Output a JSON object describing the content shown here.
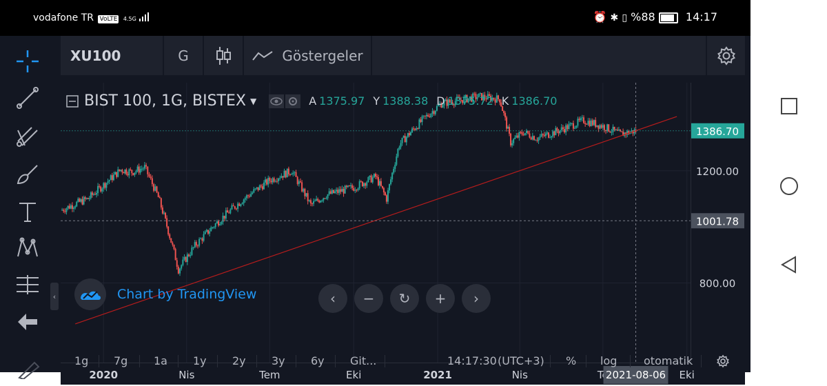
{
  "status_bar": {
    "carrier": "vodafone TR",
    "network_badge": "VoLTE",
    "signal": "4.5G",
    "battery": "%88",
    "time": "14:17",
    "icons": [
      "alarm-icon",
      "bluetooth-icon",
      "vibrate-icon",
      "battery-icon"
    ]
  },
  "top_bar": {
    "symbol": "XU100",
    "interval": "G",
    "chart_type_icon": "candlestick-icon",
    "indicators_icon": "indicators-icon",
    "indicators_label": "Göstergeler",
    "settings_icon": "gear-icon"
  },
  "tools": [
    "crosshair-icon",
    "trend-line-icon",
    "pitchfork-icon",
    "brush-icon",
    "text-icon",
    "pattern-icon",
    "measure-icon",
    "back-arrow-icon"
  ],
  "legend": {
    "title": "BIST 100, 1G, BISTEX",
    "labels": {
      "open": "A",
      "high": "Y",
      "low": "D",
      "close": "K"
    },
    "values": {
      "open": "1375.97",
      "high": "1388.38",
      "low": "1375.72",
      "close": "1386.70"
    }
  },
  "watermark": {
    "text": "Chart by TradingView"
  },
  "nav_buttons": [
    "scroll-left-icon",
    "zoom-out-icon",
    "reset-icon",
    "zoom-in-icon",
    "scroll-right-icon"
  ],
  "bottom_bar": {
    "ranges": [
      "1g",
      "7g",
      "1a",
      "1y",
      "2y",
      "3y",
      "6y",
      "Git..."
    ],
    "time": "14:17:30",
    "timezone": "(UTC+3)",
    "percent_label": "%",
    "log_label": "log",
    "auto_label": "otomatik",
    "settings_icon": "gear-icon"
  },
  "colors": {
    "up": "#26a69a",
    "down": "#ef5350",
    "background": "#131722",
    "trendline": "#b71c1c",
    "last_price_badge": "#26a69a"
  },
  "chart_data": {
    "type": "candlestick",
    "title": "BIST 100, 1G, BISTEX",
    "x_axis": {
      "ticks": [
        "2020",
        "Nis",
        "Tem",
        "Eki",
        "2021",
        "Nis",
        "Te",
        "Eki"
      ],
      "tick_dates": [
        "2020-01-01",
        "2020-04-01",
        "2020-07-01",
        "2020-10-01",
        "2021-01-01",
        "2021-04-01",
        "2021-07-01",
        "2021-10-01"
      ],
      "range": [
        "2019-11-15",
        "2021-10-05"
      ],
      "crosshair_date": "2021-08-06"
    },
    "y_axis": {
      "ticks": [
        800.0,
        1200.0
      ],
      "tick_labels": [
        "800.00",
        "1200.00"
      ],
      "range": [
        600,
        1650
      ]
    },
    "price_labels": [
      {
        "value": 1386.7,
        "label": "1386.70",
        "kind": "last_price"
      },
      {
        "value": 1001.78,
        "label": "1001.78",
        "kind": "crosshair"
      }
    ],
    "ohlc_last": {
      "open": 1375.97,
      "high": 1388.38,
      "low": 1375.72,
      "close": 1386.7
    },
    "series": [
      {
        "date": "2019-11-15",
        "close": 1040
      },
      {
        "date": "2019-12-01",
        "close": 1065
      },
      {
        "date": "2019-12-15",
        "close": 1085
      },
      {
        "date": "2020-01-01",
        "close": 1140
      },
      {
        "date": "2020-01-20",
        "close": 1205
      },
      {
        "date": "2020-02-01",
        "close": 1195
      },
      {
        "date": "2020-02-15",
        "close": 1215
      },
      {
        "date": "2020-03-01",
        "close": 1090
      },
      {
        "date": "2020-03-15",
        "close": 930
      },
      {
        "date": "2020-03-23",
        "close": 840
      },
      {
        "date": "2020-04-10",
        "close": 915
      },
      {
        "date": "2020-05-01",
        "close": 985
      },
      {
        "date": "2020-06-01",
        "close": 1080
      },
      {
        "date": "2020-07-01",
        "close": 1160
      },
      {
        "date": "2020-07-25",
        "close": 1200
      },
      {
        "date": "2020-08-15",
        "close": 1060
      },
      {
        "date": "2020-09-01",
        "close": 1100
      },
      {
        "date": "2020-10-01",
        "close": 1130
      },
      {
        "date": "2020-10-25",
        "close": 1175
      },
      {
        "date": "2020-11-06",
        "close": 1085
      },
      {
        "date": "2020-11-20",
        "close": 1320
      },
      {
        "date": "2020-12-15",
        "close": 1440
      },
      {
        "date": "2021-01-05",
        "close": 1530
      },
      {
        "date": "2021-01-25",
        "close": 1550
      },
      {
        "date": "2021-02-15",
        "close": 1570
      },
      {
        "date": "2021-03-10",
        "close": 1555
      },
      {
        "date": "2021-03-22",
        "close": 1330
      },
      {
        "date": "2021-04-05",
        "close": 1380
      },
      {
        "date": "2021-04-20",
        "close": 1350
      },
      {
        "date": "2021-05-15",
        "close": 1390
      },
      {
        "date": "2021-06-10",
        "close": 1440
      },
      {
        "date": "2021-07-01",
        "close": 1410
      },
      {
        "date": "2021-07-20",
        "close": 1370
      },
      {
        "date": "2021-08-06",
        "close": 1386.7
      }
    ],
    "trendline": [
      {
        "date": "2019-12-01",
        "value": 690
      },
      {
        "date": "2021-09-20",
        "value": 1460
      }
    ]
  }
}
